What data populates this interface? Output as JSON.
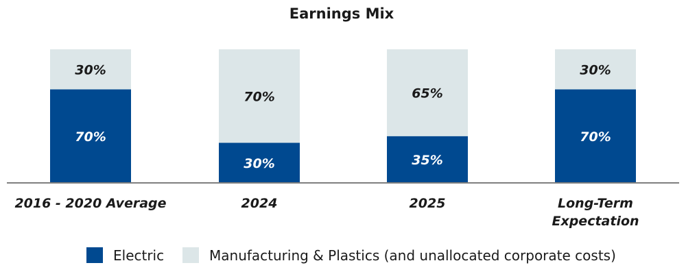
{
  "chart_data": {
    "type": "bar",
    "stacked": true,
    "title": "Earnings Mix",
    "categories": [
      "2016 - 2020 Average",
      "2024",
      "2025",
      "Long-Term Expectation"
    ],
    "category_label_lines": [
      [
        "2016 - 2020 Average"
      ],
      [
        "2024"
      ],
      [
        "2025"
      ],
      [
        "Long-Term",
        "Expectation"
      ]
    ],
    "series": [
      {
        "name": "Electric",
        "values": [
          70,
          30,
          35,
          70
        ],
        "labels": [
          "70%",
          "30%",
          "35%",
          "70%"
        ],
        "color": "#004990",
        "label_color": "#ffffff"
      },
      {
        "name": "Manufacturing & Plastics (and unallocated corporate costs)",
        "values": [
          30,
          70,
          65,
          30
        ],
        "labels": [
          "30%",
          "70%",
          "65%",
          "30%"
        ],
        "color": "#dce6e8",
        "label_color": "#1a1a1a"
      }
    ],
    "ylim": [
      0,
      100
    ],
    "xlabel": "",
    "ylabel": "",
    "grid": false,
    "legend_position": "bottom",
    "baseline_color": "#7f7f7f"
  }
}
